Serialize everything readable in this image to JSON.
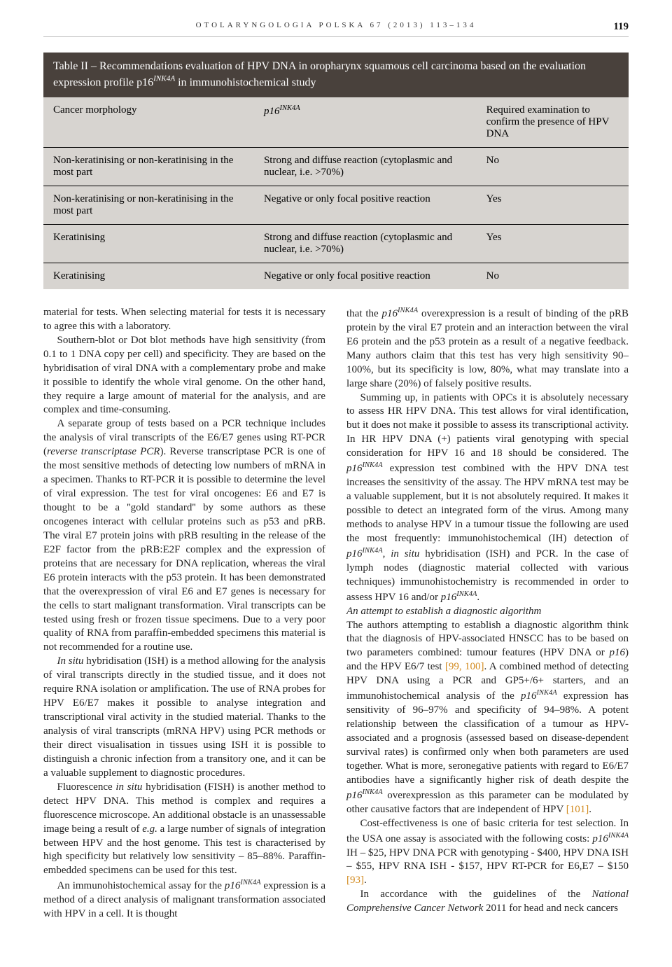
{
  "header": {
    "journal": "OTOLARYNGOLOGIA POLSKA 67 (2013) 113–134",
    "page_number": "119"
  },
  "table": {
    "caption": "Table II – Recommendations evaluation of HPV DNA in oropharynx squamous cell carcinoma based on the evaluation expression profile p16",
    "caption_sup": "INK4A",
    "caption_tail": " in immunohistochemical study",
    "columns": {
      "c0": "Cancer morphology",
      "c1_pre": "p16",
      "c1_sup": "INK4A",
      "c2": "Required examination to confirm the presence of HPV DNA"
    },
    "rows": [
      {
        "c0": "Non-keratinising or non-keratinising in the most part",
        "c1": "Strong and diffuse reaction (cytoplasmic and nuclear, i.e. >70%)",
        "c2": "No"
      },
      {
        "c0": "Non-keratinising or non-keratinising in the most part",
        "c1": "Negative or only focal positive reaction",
        "c2": "Yes"
      },
      {
        "c0": "Keratinising",
        "c1": "Strong and diffuse reaction (cytoplasmic and nuclear, i.e. >70%)",
        "c2": "Yes"
      },
      {
        "c0": "Keratinising",
        "c1": "Negative or only focal positive reaction",
        "c2": "No"
      }
    ],
    "bg_color": "#d7d4d0",
    "header_bg": "#49413c",
    "header_fg": "#ffffff",
    "border_color": "#000000"
  },
  "left": {
    "p0": "material for tests. When selecting material for tests it is necessary to agree this with a laboratory.",
    "p1": "Southern-blot or Dot blot methods have high sensitivity (from 0.1 to 1 DNA copy per cell) and specificity. They are based on the hybridisation of viral DNA with a complementary probe and make it possible to identify the whole viral genome. On the other hand, they require a large amount of material for the analysis, and are complex and time-consuming.",
    "p2a": "A separate group of tests based on a PCR technique includes the analysis of viral transcripts of the E6/E7 genes using RT-PCR (",
    "p2i": "reverse transcriptase PCR",
    "p2b": "). Reverse transcriptase PCR is one of the most sensitive methods of detecting low numbers of mRNA in a specimen. Thanks to RT-PCR it is possible to determine the level of viral expression. The test for viral oncogenes: E6 and E7 is thought to be a ''gold standard'' by some authors as these oncogenes interact with cellular proteins such as p53 and pRB. The viral E7 protein joins with pRB resulting in the release of the E2F factor from the pRB:E2F complex and the expression of proteins that are necessary for DNA replication, whereas the viral E6 protein interacts with the p53 protein. It has been demonstrated that the overexpression of viral E6 and E7 genes is necessary for the cells to start malignant transformation. Viral transcripts can be tested using fresh or frozen tissue specimens. Due to a very poor quality of RNA from paraffin-embedded specimens this material is not recommended for a routine use.",
    "p3a_i": "In situ",
    "p3a": " hybridisation (ISH) is a method allowing for the analysis of viral transcripts directly in the studied tissue, and it does not require RNA isolation or amplification. The use of RNA probes for HPV E6/E7 makes it possible to analyse integration and transcriptional viral activity in the studied material. Thanks to the analysis of viral transcripts (mRNA HPV) using PCR methods or their direct visualisation in tissues using ISH it is possible to distinguish a chronic infection from a transitory one, and it can be a valuable supplement to diagnostic procedures.",
    "p4a": "Fluorescence ",
    "p4i": "in situ",
    "p4b": " hybridisation (FISH) is another method to detect HPV DNA. This method is complex and requires a fluorescence microscope. An additional obstacle is an unassessable image being a result of ",
    "p4i2": "e.g.",
    "p4c": " a large number of signals of integration between HPV and the host genome. This test is characterised by high specificity but relatively low sensitivity – 85–88%. Paraffin-embedded specimens can be used for this test.",
    "p5a": "An immunohistochemical assay for the ",
    "p5i": "p16",
    "p5sup": "INK4A",
    "p5b": " expression is a method of a direct analysis of malignant transformation associated with HPV in a cell. It is thought"
  },
  "right": {
    "p0a": "that the ",
    "p0i": "p16",
    "p0sup": "INK4A",
    "p0b": " overexpression is a result of binding of the pRB protein by the viral E7 protein and an interaction between the viral E6 protein and the p53 protein as a result of a negative feedback. Many authors claim that this test has very high sensitivity 90–100%, but its specificity is low, 80%, what may translate into a large share (20%) of falsely positive results.",
    "p1a": "Summing up, in patients with OPCs it is absolutely necessary to assess HR HPV DNA. This test allows for viral identification, but it does not make it possible to assess its transcriptional activity. In HR HPV DNA (+) patients viral genotyping with special consideration for HPV 16 and 18 should be considered. The ",
    "p1i": "p16",
    "p1sup": "INK4A",
    "p1b": " expression test combined with the HPV DNA test increases the sensitivity of the assay. The HPV mRNA test may be a valuable supplement, but it is not absolutely required. It makes it possible to detect an integrated form of the virus. Among many methods to analyse HPV in a tumour tissue the following are used the most frequently: immunohistochemical (IH) detection of ",
    "p1i2": "p16",
    "p1sup2": "INK4A",
    "p1c": ", ",
    "p1i3": "in situ",
    "p1d": " hybridisation (ISH) and PCR. In the case of lymph nodes (diagnostic material collected with various techniques) immunohistochemistry is recommended in order to assess HPV 16 and/or ",
    "p1i4": "p16",
    "p1sup3": "INK4A",
    "p1e": ".",
    "sub": "An attempt to establish a diagnostic algorithm",
    "p2a": "The authors attempting to establish a diagnostic algorithm think that the diagnosis of HPV-associated HNSCC has to be based on two parameters combined: tumour features (HPV DNA or ",
    "p2i": "p16",
    "p2b": ") and the HPV E6/7 test ",
    "p2ref": "[99, 100]",
    "p2c": ". A combined method of detecting HPV DNA using a PCR and GP5+/6+ starters, and an immunohistochemical analysis of the ",
    "p2i2": "p16",
    "p2sup": "INK4A",
    "p2d": " expression has sensitivity of 96–97% and specificity of 94–98%. A potent relationship between the classification of a tumour as HPV-associated and a prognosis (assessed based on disease-dependent survival rates) is confirmed only when both parameters are used together. What is more, seronegative patients with regard to E6/E7 antibodies have a significantly higher risk of death despite the ",
    "p2i3": "p16",
    "p2sup2": "INK4A",
    "p2e": " overexpression as this parameter can be modulated by other causative factors that are independent of HPV ",
    "p2ref2": "[101]",
    "p2f": ".",
    "p3a": "Cost-effectiveness is one of basic criteria for test selection. In the USA one assay is associated with the following costs: ",
    "p3i": "p16",
    "p3sup": "INK4A",
    "p3b": " IH – $25, HPV DNA PCR with genotyping - $400, HPV DNA ISH – $55, HPV RNA ISH - $157, HPV RT-PCR for E6,E7 – $150 ",
    "p3ref": "[93]",
    "p3c": ".",
    "p4a": "In accordance with the guidelines of the ",
    "p4i": "National Comprehensive Cancer Network",
    "p4b": " 2011 for head and neck cancers"
  }
}
